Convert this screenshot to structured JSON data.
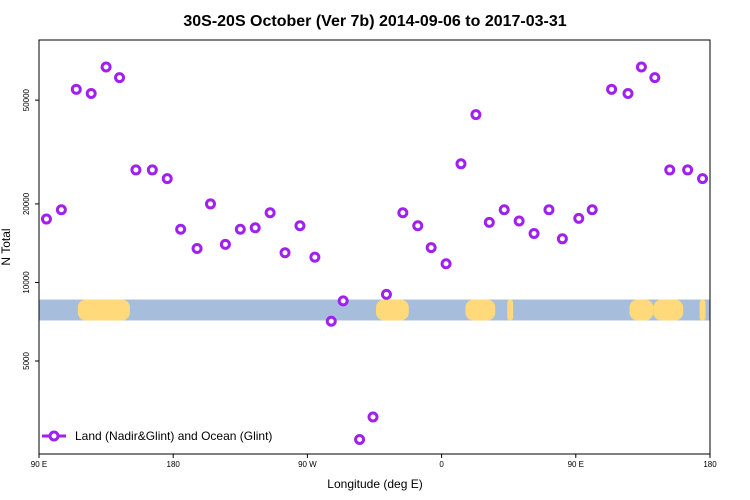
{
  "chart_data": {
    "type": "scatter",
    "title": "30S-20S October (Ver 7b)   2014-09-06 to 2017-03-31",
    "xlabel": "Longitude (deg E)",
    "ylabel": "N Total",
    "y_scale": "log",
    "ylim": [
      2200,
      85000
    ],
    "xlim": [
      90,
      540
    ],
    "x_ticks": [
      {
        "value": 90,
        "label": "90 E"
      },
      {
        "value": 180,
        "label": "180"
      },
      {
        "value": 270,
        "label": "90 W"
      },
      {
        "value": 360,
        "label": "0"
      },
      {
        "value": 450,
        "label": "90 E"
      },
      {
        "value": 540,
        "label": "180"
      }
    ],
    "y_ticks": [
      {
        "value": 5000,
        "label": "5000"
      },
      {
        "value": 10000,
        "label": "10000"
      },
      {
        "value": 20000,
        "label": "20000"
      },
      {
        "value": 50000,
        "label": "50000"
      }
    ],
    "grid": false,
    "legend": {
      "position": "bottom-left",
      "entries": [
        "Land (Nadir&Glint) and Ocean (Glint)"
      ]
    },
    "series": [
      {
        "name": "Land (Nadir&Glint) and Ocean (Glint)",
        "color": "#a020f0",
        "marker": "open-circle",
        "x": [
          95,
          105,
          115,
          125,
          135,
          144,
          155,
          166,
          176,
          185,
          196,
          205,
          215,
          225,
          235,
          245,
          255,
          265,
          275,
          286,
          294,
          305,
          314,
          323,
          334,
          344,
          353,
          363,
          373,
          383,
          392,
          402,
          412,
          422,
          432,
          441,
          452,
          461,
          474,
          485,
          494,
          503,
          513,
          525,
          535
        ],
        "y": [
          17500,
          19000,
          55000,
          53000,
          67000,
          61000,
          27000,
          27000,
          25000,
          16000,
          13500,
          20000,
          14000,
          16000,
          16200,
          18500,
          13000,
          16500,
          12500,
          7100,
          8500,
          2500,
          3050,
          9000,
          18500,
          16500,
          13600,
          11800,
          28500,
          44000,
          17000,
          19000,
          17200,
          15400,
          19000,
          14700,
          17600,
          19000,
          55000,
          53000,
          67000,
          61000,
          27000,
          27000,
          25000
        ]
      }
    ],
    "background_band": {
      "y_range": [
        7150,
        8600
      ],
      "ocean_color": "#a6bddb",
      "land_color": "#ffd97a",
      "land_x_ranges": [
        [
          116,
          151
        ],
        [
          316,
          338
        ],
        [
          376,
          396
        ],
        [
          404,
          408
        ],
        [
          486,
          502
        ],
        [
          502,
          522
        ],
        [
          533,
          537
        ]
      ]
    }
  }
}
